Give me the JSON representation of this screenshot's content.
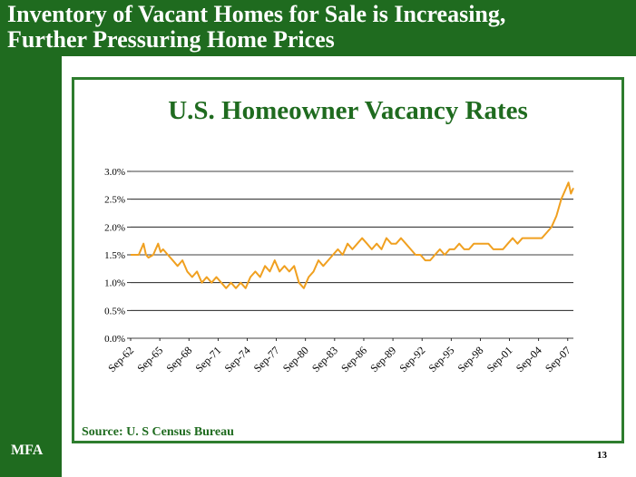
{
  "slide": {
    "title_line1": "Inventory of Vacant Homes for Sale is Increasing,",
    "title_line2": "Further Pressuring Home Prices",
    "brand": "MFA",
    "page_number": "13"
  },
  "colors": {
    "band": "#1f6b1f",
    "frame": "#2e7d2e",
    "line": "#f0a020",
    "grid": "#000000"
  },
  "chart_data": {
    "type": "line",
    "title": "U.S. Homeowner Vacancy Rates",
    "source": "Source: U. S Census Bureau",
    "xlabel": "",
    "ylabel": "",
    "ylim": [
      0,
      3.0
    ],
    "yticks": [
      0,
      0.5,
      1.0,
      1.5,
      2.0,
      2.5,
      3.0
    ],
    "ytick_labels": [
      "0.0%",
      "0.5%",
      "1.0%",
      "1.5%",
      "2.0%",
      "2.5%",
      "3.0%"
    ],
    "grid": true,
    "xlim": [
      1962.67,
      2008.25
    ],
    "xtick_labels": [
      "Sep-62",
      "Sep-65",
      "Sep-68",
      "Sep-71",
      "Sep-74",
      "Sep-77",
      "Sep-80",
      "Sep-83",
      "Sep-86",
      "Sep-89",
      "Sep-92",
      "Sep-95",
      "Sep-98",
      "Sep-01",
      "Sep-04",
      "Sep-07"
    ],
    "series": [
      {
        "x": [
          1962.67,
          1963.0,
          1963.5,
          1964.0,
          1964.25,
          1964.5,
          1965.0,
          1965.5,
          1965.75,
          1966.0,
          1966.5,
          1967.0,
          1967.5,
          1968.0,
          1968.5,
          1969.0,
          1969.5,
          1970.0,
          1970.5,
          1971.0,
          1971.5,
          1972.0,
          1972.5,
          1973.0,
          1973.5,
          1974.0,
          1974.5,
          1975.0,
          1975.5,
          1976.0,
          1976.5,
          1977.0,
          1977.5,
          1978.0,
          1978.5,
          1979.0,
          1979.5,
          1980.0,
          1980.5,
          1981.0,
          1981.5,
          1982.0,
          1982.5,
          1983.0,
          1983.5,
          1984.0,
          1984.5,
          1985.0,
          1985.5,
          1986.0,
          1986.5,
          1987.0,
          1987.5,
          1988.0,
          1988.5,
          1989.0,
          1989.5,
          1990.0,
          1990.5,
          1991.0,
          1991.5,
          1992.0,
          1992.5,
          1993.0,
          1993.5,
          1994.0,
          1994.5,
          1995.0,
          1995.5,
          1996.0,
          1996.5,
          1997.0,
          1997.5,
          1998.0,
          1998.5,
          1999.0,
          1999.5,
          2000.0,
          2000.5,
          2001.0,
          2001.5,
          2002.0,
          2002.5,
          2003.0,
          2003.5,
          2004.0,
          2004.5,
          2005.0,
          2005.5,
          2006.0,
          2006.5,
          2007.0,
          2007.5,
          2007.75,
          2008.0,
          2008.25
        ],
        "values": [
          1.5,
          1.5,
          1.5,
          1.7,
          1.5,
          1.45,
          1.5,
          1.7,
          1.55,
          1.6,
          1.5,
          1.4,
          1.3,
          1.4,
          1.2,
          1.1,
          1.2,
          1.0,
          1.1,
          1.0,
          1.1,
          1.0,
          0.9,
          1.0,
          0.9,
          1.0,
          0.9,
          1.1,
          1.2,
          1.1,
          1.3,
          1.2,
          1.4,
          1.2,
          1.3,
          1.2,
          1.3,
          1.0,
          0.9,
          1.1,
          1.2,
          1.4,
          1.3,
          1.4,
          1.5,
          1.6,
          1.5,
          1.7,
          1.6,
          1.7,
          1.8,
          1.7,
          1.6,
          1.7,
          1.6,
          1.8,
          1.7,
          1.7,
          1.8,
          1.7,
          1.6,
          1.5,
          1.5,
          1.4,
          1.4,
          1.5,
          1.6,
          1.5,
          1.6,
          1.6,
          1.7,
          1.6,
          1.6,
          1.7,
          1.7,
          1.7,
          1.7,
          1.6,
          1.6,
          1.6,
          1.7,
          1.8,
          1.7,
          1.8,
          1.8,
          1.8,
          1.8,
          1.8,
          1.9,
          2.0,
          2.2,
          2.5,
          2.7,
          2.8,
          2.6,
          2.7
        ]
      }
    ]
  }
}
